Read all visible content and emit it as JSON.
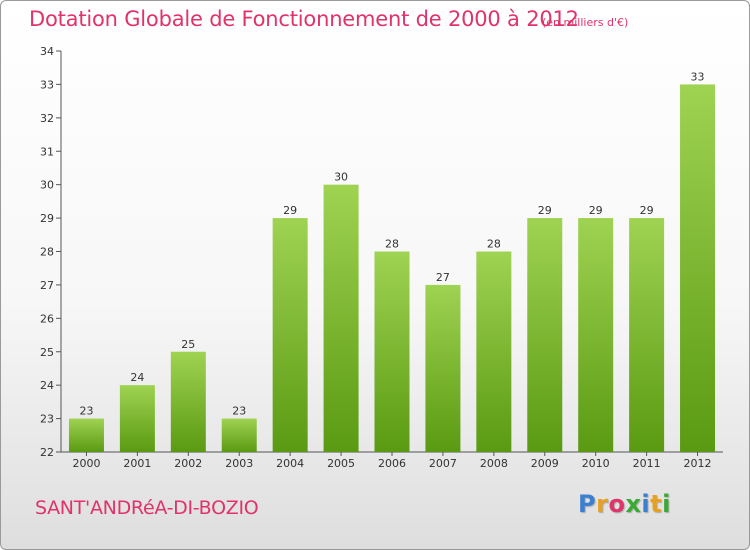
{
  "chart_data": {
    "type": "bar",
    "title": "Dotation Globale de Fonctionnement de 2000 à 2012",
    "subtitle": "(en milliers d'€)",
    "categories": [
      "2000",
      "2001",
      "2002",
      "2003",
      "2004",
      "2005",
      "2006",
      "2007",
      "2008",
      "2009",
      "2010",
      "2011",
      "2012"
    ],
    "values": [
      23,
      24,
      25,
      23,
      29,
      30,
      28,
      27,
      28,
      29,
      29,
      29,
      33
    ],
    "ylim": [
      22,
      34
    ],
    "yticks": [
      22,
      23,
      24,
      25,
      26,
      27,
      28,
      29,
      30,
      31,
      32,
      33,
      34
    ],
    "grid": false,
    "legend": "none",
    "colors": {
      "bar_top": "#9fd352",
      "bar_bottom": "#5a9a12",
      "title": "#e0336a"
    }
  },
  "footer": {
    "commune": "SANT'ANDRéA-DI-BOZIO",
    "logo_letters": [
      {
        "ch": "P",
        "color": "#3a7fd0"
      },
      {
        "ch": "r",
        "color": "#e8a020"
      },
      {
        "ch": "o",
        "color": "#e0336a"
      },
      {
        "ch": "x",
        "color": "#3aaa35"
      },
      {
        "ch": "i",
        "color": "#3a7fd0"
      },
      {
        "ch": "t",
        "color": "#e8a020"
      },
      {
        "ch": "i",
        "color": "#3aaa35"
      }
    ]
  }
}
